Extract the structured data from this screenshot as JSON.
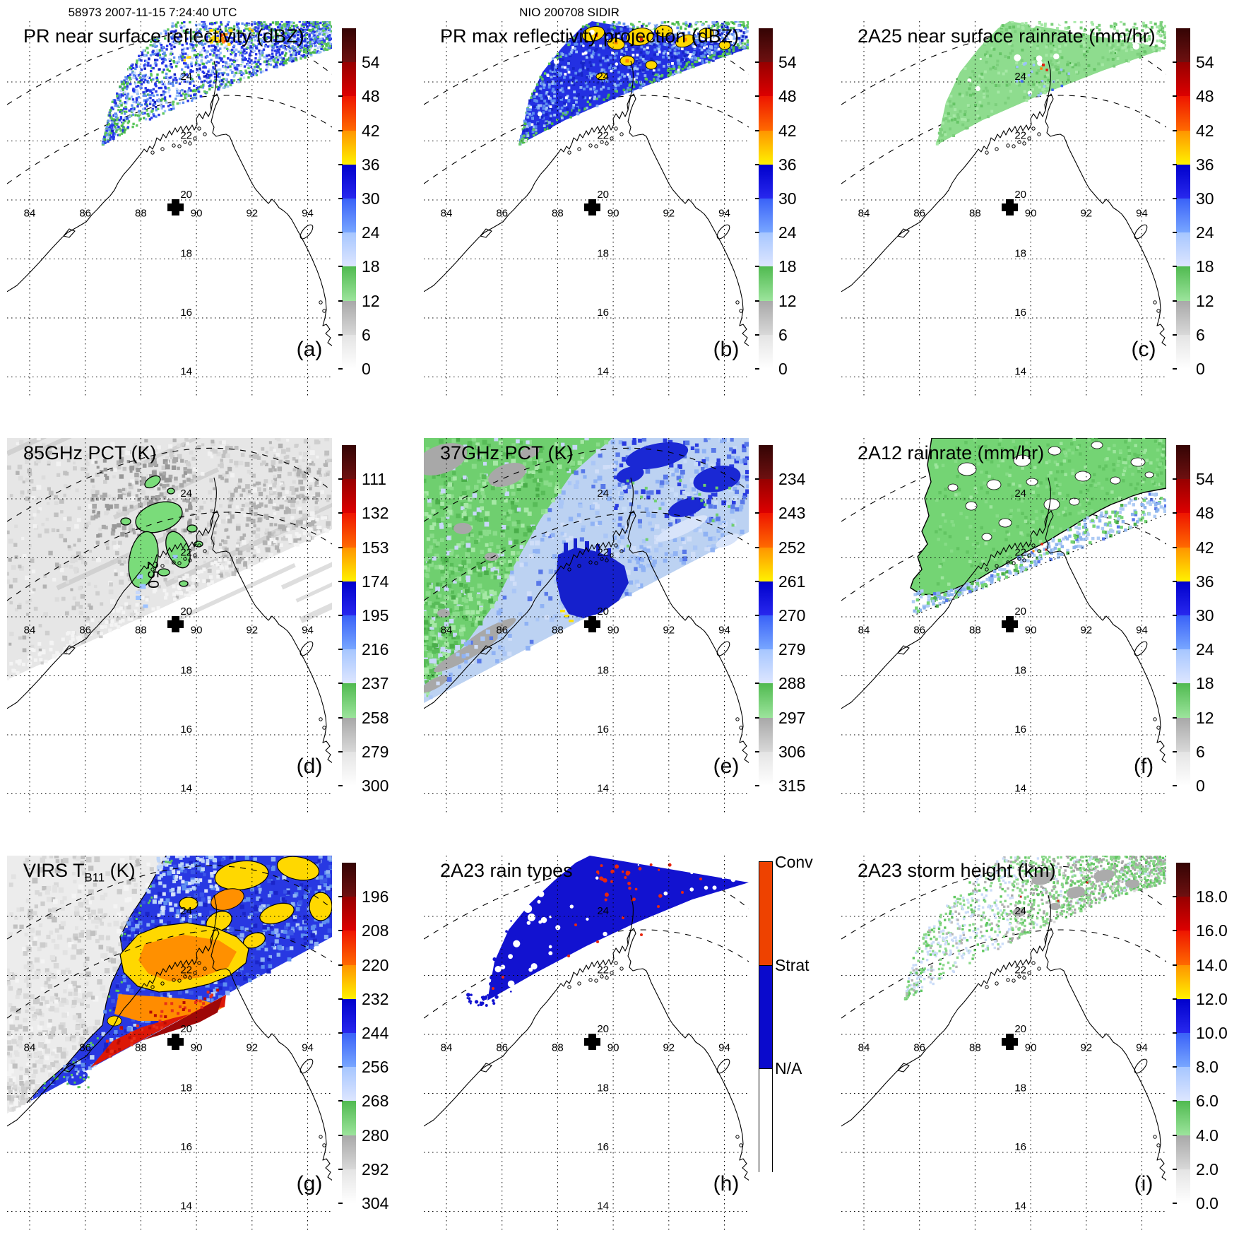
{
  "header": {
    "left": "58973 2007-11-15 7:24:40 UTC",
    "center": "NIO 200708 SIDIR"
  },
  "map": {
    "lon_labels": [
      "84",
      "86",
      "88",
      "90",
      "92",
      "94"
    ],
    "lat_labels": [
      "24",
      "22",
      "20",
      "18",
      "16",
      "14"
    ],
    "contour_label": "250",
    "marker": "storm-center-cross"
  },
  "palette": {
    "spectral_segments_bottom_to_top": [
      [
        "#ffffff",
        "#e4e4e4"
      ],
      [
        "#d8d8d8",
        "#a8a8a8"
      ],
      [
        "#9ce49c",
        "#50ba50"
      ],
      [
        "#dde6ff",
        "#a6c6ff"
      ],
      [
        "#78a6ff",
        "#3a62f8"
      ],
      [
        "#2828ee",
        "#0000cc"
      ],
      [
        "#fff200",
        "#ff9400"
      ],
      [
        "#ff6a00",
        "#ee1500"
      ],
      [
        "#dd0000",
        "#960000"
      ],
      [
        "#6e1010",
        "#340404"
      ]
    ],
    "raintype": {
      "conv": "#ee4200",
      "strat": "#0a0acc",
      "na": "#ffffff"
    }
  },
  "panels": [
    {
      "letter": "(a)",
      "title_prefix": "PR near surface reflectivity (dBZ)",
      "title_sub": "",
      "title_suffix": "",
      "colorbar": {
        "kind": "spectral",
        "ticks": [
          "54",
          "48",
          "42",
          "36",
          "30",
          "24",
          "18",
          "12",
          "6",
          "0"
        ]
      }
    },
    {
      "letter": "(b)",
      "title_prefix": "PR max reflectivity projection (dBZ)",
      "title_sub": "",
      "title_suffix": "",
      "colorbar": {
        "kind": "spectral",
        "ticks": [
          "54",
          "48",
          "42",
          "36",
          "30",
          "24",
          "18",
          "12",
          "6",
          "0"
        ]
      }
    },
    {
      "letter": "(c)",
      "title_prefix": "2A25 near surface rainrate (mm/hr)",
      "title_sub": "",
      "title_suffix": "",
      "colorbar": {
        "kind": "spectral",
        "ticks": [
          "54",
          "48",
          "42",
          "36",
          "30",
          "24",
          "18",
          "12",
          "6",
          "0"
        ]
      }
    },
    {
      "letter": "(d)",
      "title_prefix": "85GHz PCT (K)",
      "title_sub": "",
      "title_suffix": "",
      "colorbar": {
        "kind": "spectral",
        "ticks": [
          "111",
          "132",
          "153",
          "174",
          "195",
          "216",
          "237",
          "258",
          "279",
          "300"
        ]
      }
    },
    {
      "letter": "(e)",
      "title_prefix": "37GHz PCT (K)",
      "title_sub": "",
      "title_suffix": "",
      "colorbar": {
        "kind": "spectral",
        "ticks": [
          "234",
          "243",
          "252",
          "261",
          "270",
          "279",
          "288",
          "297",
          "306",
          "315"
        ]
      }
    },
    {
      "letter": "(f)",
      "title_prefix": "2A12 rainrate (mm/hr)",
      "title_sub": "",
      "title_suffix": "",
      "colorbar": {
        "kind": "spectral",
        "ticks": [
          "54",
          "48",
          "42",
          "36",
          "30",
          "24",
          "18",
          "12",
          "6",
          "0"
        ]
      }
    },
    {
      "letter": "(g)",
      "title_prefix": "VIRS T",
      "title_sub": "B11",
      "title_suffix": " (K)",
      "colorbar": {
        "kind": "spectral",
        "ticks": [
          "196",
          "208",
          "220",
          "232",
          "244",
          "256",
          "268",
          "280",
          "292",
          "304"
        ]
      }
    },
    {
      "letter": "(h)",
      "title_prefix": "2A23 rain types",
      "title_sub": "",
      "title_suffix": "",
      "colorbar": {
        "kind": "raintype",
        "labels": [
          "Conv",
          "Strat",
          "N/A"
        ]
      }
    },
    {
      "letter": "(i)",
      "title_prefix": "2A23 storm height (km)",
      "title_sub": "",
      "title_suffix": "",
      "colorbar": {
        "kind": "spectral",
        "ticks": [
          "18.0",
          "16.0",
          "14.0",
          "12.0",
          "10.0",
          "8.0",
          "6.0",
          "4.0",
          "2.0",
          "0.0"
        ]
      }
    }
  ],
  "chart_data": [
    {
      "type": "heatmap",
      "panel": "a",
      "title": "PR near surface reflectivity (dBZ)",
      "colorbar_ticks": [
        0,
        6,
        12,
        18,
        24,
        30,
        36,
        42,
        48,
        54
      ],
      "units": "dBZ",
      "extent": {
        "lon": [
          83.2,
          94.9
        ],
        "lat": [
          13.4,
          26.1
        ]
      },
      "description": "Narrow PR swath band from lower-left to upper-right, mostly 18-36 dBZ (blues) with green fringe and small 36-48 dBZ yellow/orange cells near 90-91E, 25-26N"
    },
    {
      "type": "heatmap",
      "panel": "b",
      "title": "PR max reflectivity projection (dBZ)",
      "colorbar_ticks": [
        0,
        6,
        12,
        18,
        24,
        30,
        36,
        42,
        48,
        54
      ],
      "units": "dBZ",
      "description": "Same swath as (a); denser coverage with many 36-42 dBZ yellow cells outlined in black"
    },
    {
      "type": "heatmap",
      "panel": "c",
      "title": "2A25 near surface rainrate (mm/hr)",
      "colorbar_ticks": [
        0,
        6,
        12,
        18,
        24,
        30,
        36,
        42,
        48,
        54
      ],
      "units": "mm/hr",
      "description": "Same swath; mostly light rain 12-18 mm/hr (green) with isolated blue 18-30 and one ~42+ red speck"
    },
    {
      "type": "heatmap",
      "panel": "d",
      "title": "85GHz PCT (K)",
      "colorbar_ticks": [
        111,
        132,
        153,
        174,
        195,
        216,
        237,
        258,
        279,
        300
      ],
      "units": "K",
      "contour_label": 250,
      "description": "Wide TMI swath in grays (258-300 K) with green 237-258 K depressed-PCT blobs outlined in black near the delta; 250 K contour labeled"
    },
    {
      "type": "heatmap",
      "panel": "e",
      "title": "37GHz PCT (K)",
      "colorbar_ticks": [
        234,
        243,
        252,
        261,
        270,
        279,
        288,
        297,
        306,
        315
      ],
      "units": "K",
      "description": "Full swath: greens/grays 288-315 K on west side, pale to deep blues 261-288 K east, deep blue core south of delta with few yellow ~261 K pixels"
    },
    {
      "type": "heatmap",
      "panel": "f",
      "title": "2A12 rainrate (mm/hr)",
      "colorbar_ticks": [
        0,
        6,
        12,
        18,
        24,
        30,
        36,
        42,
        48,
        54
      ],
      "units": "mm/hr",
      "description": "TMI rain area: large green 12-18 mm/hr shield with white no-rain holes and pale-blue 18-24 speckle zone along swath edge"
    },
    {
      "type": "heatmap",
      "panel": "g",
      "title": "VIRS T_B11 (K)",
      "colorbar_ticks": [
        196,
        208,
        220,
        232,
        244,
        256,
        268,
        280,
        292,
        304
      ],
      "units": "K",
      "description": "VIRS IR: warm gray 280-304 K clear air west, blue 232-256 K cloud shield, yellow 220-232 K and orange/red 196-208 K cold overshooting tops near storm center"
    },
    {
      "type": "heatmap",
      "panel": "h",
      "title": "2A23 rain types",
      "categories": [
        "Conv",
        "Strat",
        "N/A"
      ],
      "description": "PR swath classified mostly stratiform (blue) with scattered convective (red-orange) pixels and white N/A gaps"
    },
    {
      "type": "heatmap",
      "panel": "i",
      "title": "2A23 storm height (km)",
      "colorbar_ticks": [
        0,
        2,
        4,
        6,
        8,
        10,
        12,
        14,
        16,
        18
      ],
      "units": "km",
      "description": "PR swath storm heights mostly 4-8 km (gray/green) with pale-blue ~8-10 km pixels on the western part and rare higher red pixels"
    }
  ]
}
